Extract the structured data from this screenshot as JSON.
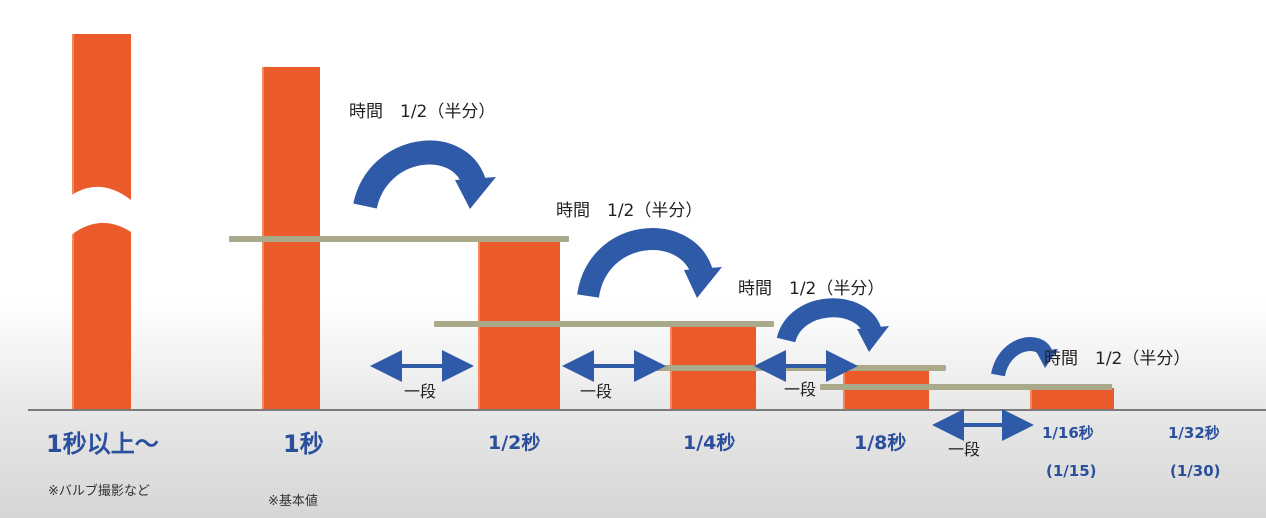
{
  "colors": {
    "bar": "#ea5a2a",
    "arrow": "#2f5aa8",
    "step_line": "#aaa98a",
    "label": "#2a4f9c"
  },
  "bars": [
    {
      "label": "1秒以上～",
      "note": "※バルブ撮影など"
    },
    {
      "label": "1秒",
      "note": "※基本値"
    },
    {
      "label": "1/2秒"
    },
    {
      "label": "1/4秒"
    },
    {
      "label": "1/8秒"
    },
    {
      "label": "1/16秒",
      "sub": "(1/15)"
    },
    {
      "label": "1/32秒",
      "sub": "(1/30)"
    }
  ],
  "annotations": {
    "half_time": "時間　1/2（半分）",
    "one_stop": "一段"
  }
}
